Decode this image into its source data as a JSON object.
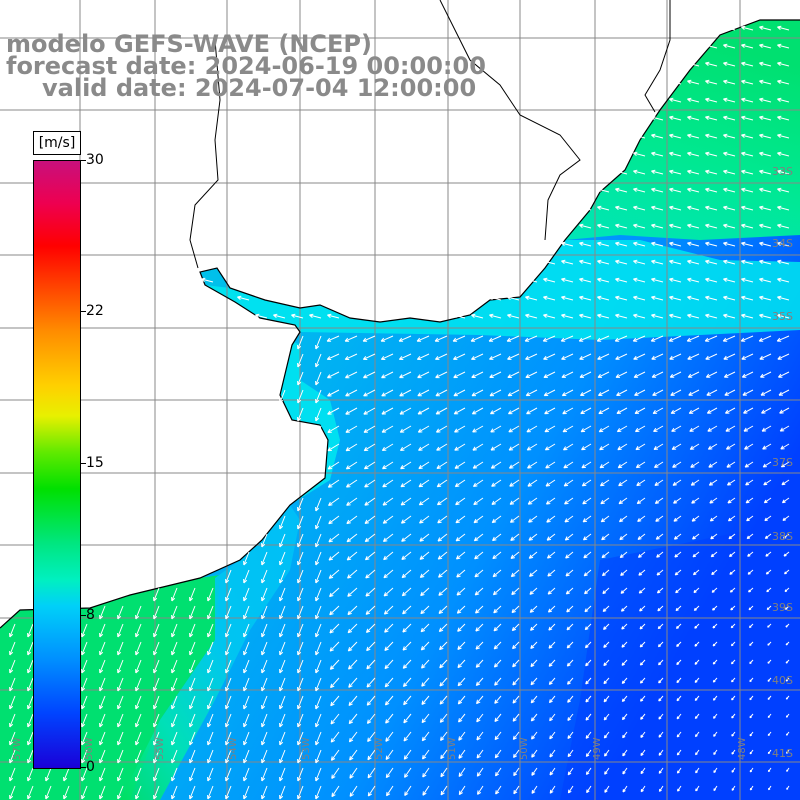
{
  "titles": {
    "line1": "modelo GEFS-WAVE (NCEP)",
    "line2": "forecast date: 2024-06-19 00:00:00",
    "line3": "valid date: 2024-07-04 12:00:00"
  },
  "colorbar": {
    "unit": "[m/s]",
    "labels": [
      "30",
      "22",
      "15",
      "8",
      "0"
    ],
    "values": [
      30,
      22,
      15,
      8,
      0
    ],
    "min": 0,
    "max": 30
  },
  "map": {
    "lat_labels": [
      "33S",
      "34S",
      "35S",
      "37S",
      "38S",
      "39S",
      "40S",
      "41S"
    ],
    "lon_labels": [
      "57W",
      "56W",
      "55W",
      "54W",
      "53W",
      "52W",
      "51W",
      "50W",
      "49W",
      "48W"
    ],
    "colors": {
      "ocean_strong": "#00e060",
      "ocean_mid": "#00e8e8",
      "ocean_weak": "#0060ff",
      "land": "#ffffff",
      "grid": "#888888",
      "coast": "#000000",
      "arrow": "#ffffff"
    }
  }
}
